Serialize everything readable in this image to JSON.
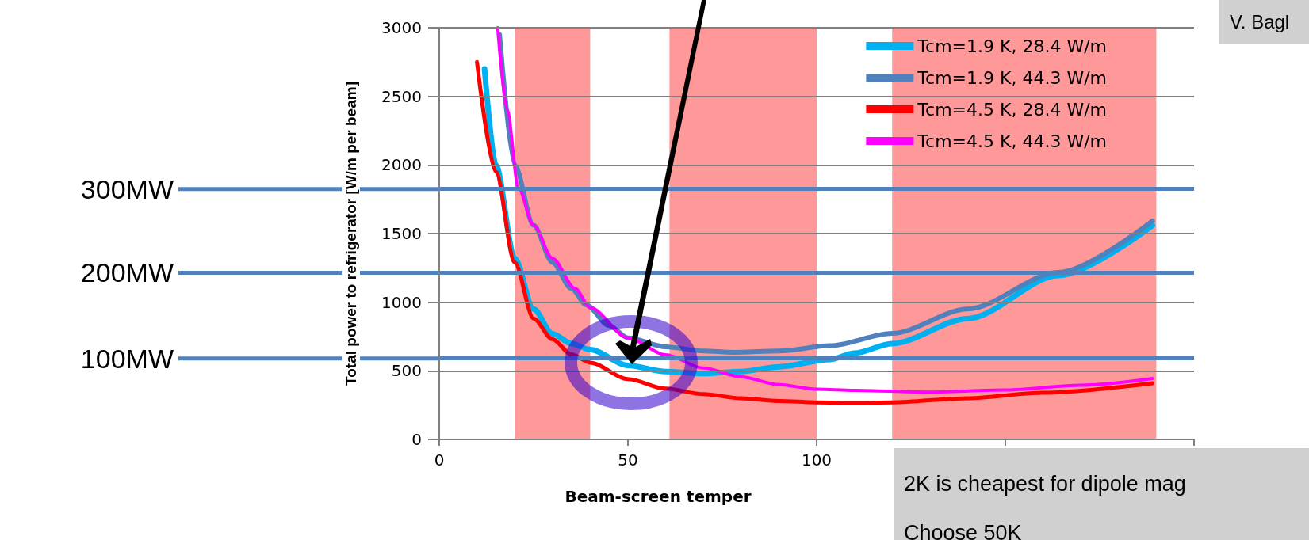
{
  "chart_data": {
    "type": "line",
    "xlabel": "Beam-screen temper",
    "ylabel": "Total power to refrigerator [W/m per beam]",
    "xlim": [
      0,
      200
    ],
    "xticks": [
      0,
      50,
      100,
      {
        "value": 150,
        "label": null
      },
      {
        "value": 200,
        "label": null
      }
    ],
    "ylim": [
      0,
      3000
    ],
    "yticks": [
      0,
      500,
      1000,
      1500,
      2000,
      2500,
      3000
    ],
    "grid": "y",
    "legend": "top right",
    "line_style": "solid",
    "series": [
      {
        "name": "Tcm=1.9 K, 28.4 W/m",
        "color": "#00b0f0",
        "x": [
          12,
          15,
          20,
          25,
          30,
          35,
          40,
          50,
          60,
          70,
          80,
          90,
          103.5,
          110,
          120,
          140,
          164,
          189
        ],
        "values": [
          2700,
          2000,
          1320,
          950,
          770,
          700,
          655,
          540,
          495,
          480,
          495,
          530,
          583,
          629,
          698,
          880,
          1194,
          1560
        ]
      },
      {
        "name": "Tcm=1.9 K, 44.3 W/m",
        "color": "#4f81bd",
        "x": [
          16,
          20,
          25,
          30,
          35,
          39,
          45,
          50,
          60,
          70,
          78,
          90,
          103.5,
          120,
          140,
          164,
          189
        ],
        "values": [
          2950,
          2000,
          1560,
          1290,
          1100,
          980,
          830,
          740,
          675,
          645,
          635,
          645,
          683,
          773,
          950,
          1217,
          1593
        ]
      },
      {
        "name": "Tcm=4.5 K, 28.4 W/m",
        "color": "#ff0000",
        "x": [
          10,
          15,
          20,
          25,
          30,
          35,
          40,
          50,
          60,
          70,
          80,
          90,
          100,
          110,
          120,
          140,
          160,
          189
        ],
        "values": [
          2750,
          1950,
          1290,
          880,
          730,
          620,
          560,
          440,
          370,
          330,
          300,
          280,
          270,
          265,
          270,
          300,
          340,
          410
        ]
      },
      {
        "name": "Tcm=4.5 K, 44.3 W/m",
        "color": "#ff00ff",
        "x": [
          15.5,
          18,
          21,
          25,
          30,
          36,
          40,
          50,
          60,
          70,
          80,
          90,
          100,
          110,
          129,
          150,
          170,
          189
        ],
        "values": [
          3000,
          2400,
          1830,
          1560,
          1320,
          1100,
          960,
          740,
          617,
          520,
          456,
          400,
          366,
          358,
          345,
          360,
          395,
          444
        ]
      }
    ],
    "ref_lines": [
      {
        "axis": "y",
        "value": 1825,
        "label": "300MW",
        "color": "#4f81bd"
      },
      {
        "axis": "y",
        "value": 1215,
        "label": "200MW",
        "color": "#4f81bd"
      },
      {
        "axis": "y",
        "value": 590,
        "label": "100MW",
        "color": "#4f81bd"
      }
    ],
    "bands": [
      {
        "axis": "x",
        "from": 20,
        "to": 40,
        "color": "#ff8080"
      },
      {
        "axis": "x",
        "from": 61,
        "to": 100,
        "color": "#ff8080"
      },
      {
        "axis": "x",
        "from": 120,
        "to": 190,
        "color": "#ff8080"
      }
    ],
    "annotations": [
      "V. Bagl",
      "2K is cheapest for dipole mag",
      "Choose 50K"
    ]
  }
}
